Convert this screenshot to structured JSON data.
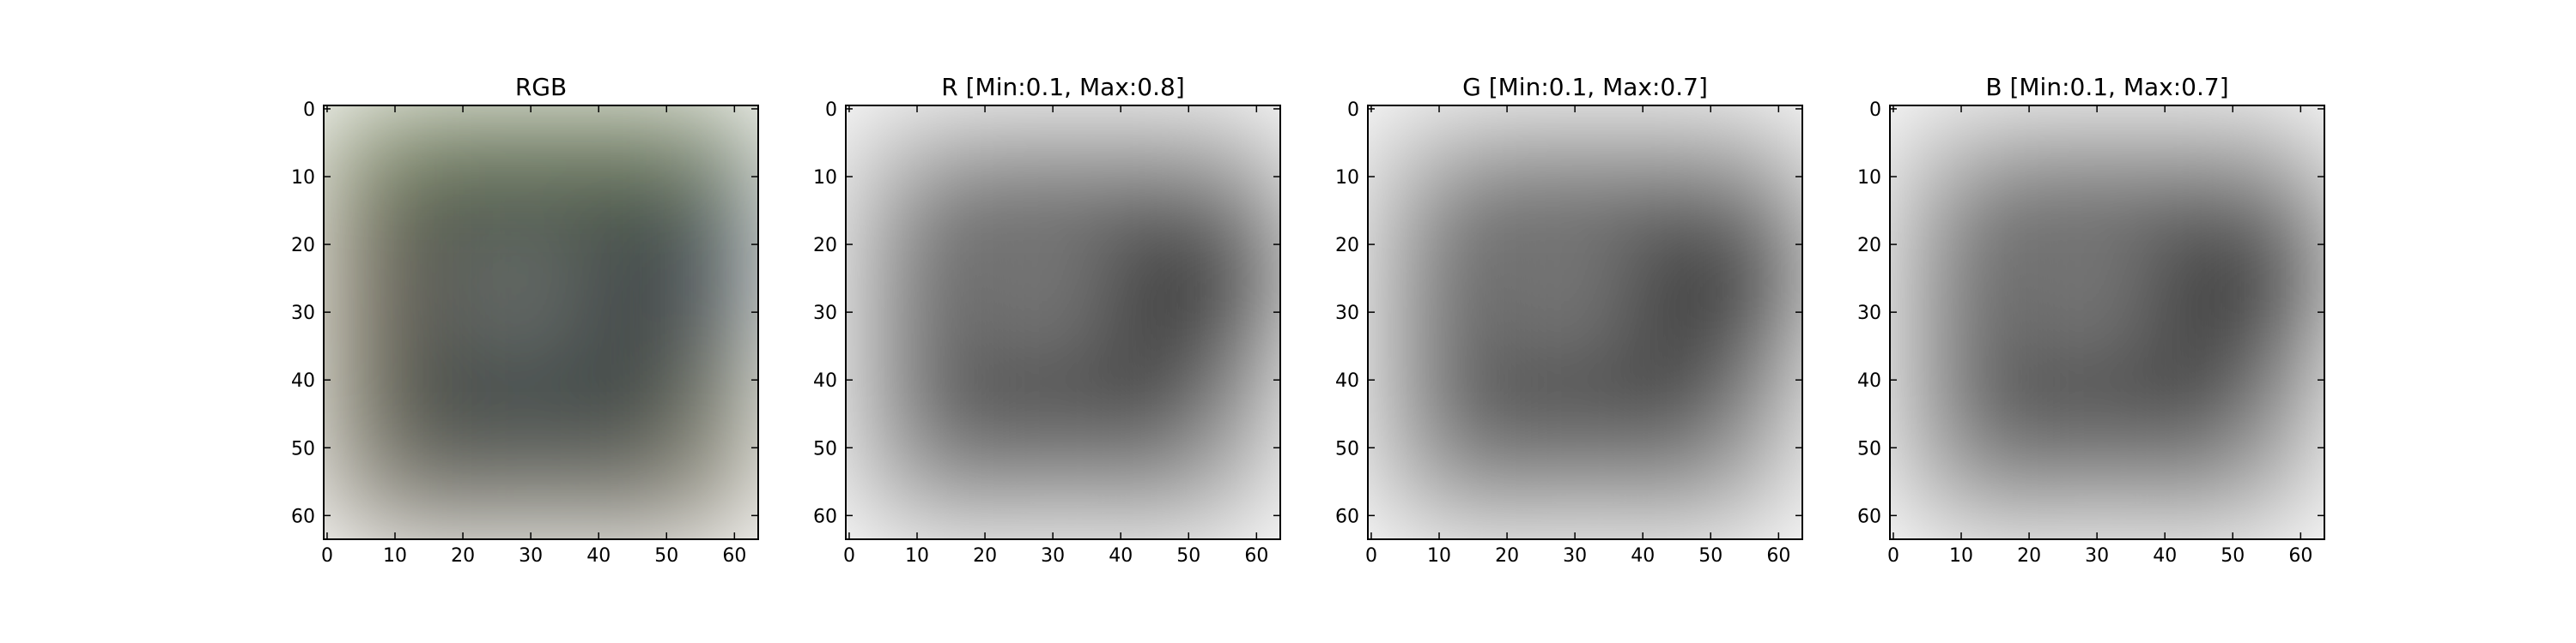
{
  "figure": {
    "panels": [
      {
        "title": "RGB",
        "mode": "rgb"
      },
      {
        "title": "R [Min:0.1, Max:0.8]",
        "mode": "gray"
      },
      {
        "title": "G [Min:0.1, Max:0.7]",
        "mode": "gray"
      },
      {
        "title": "B [Min:0.1, Max:0.7]",
        "mode": "gray"
      }
    ],
    "x_ticks": [
      "0",
      "10",
      "20",
      "30",
      "40",
      "50",
      "60"
    ],
    "y_ticks": [
      "0",
      "10",
      "20",
      "30",
      "40",
      "50",
      "60"
    ],
    "axis_range": [
      0,
      64
    ]
  }
}
